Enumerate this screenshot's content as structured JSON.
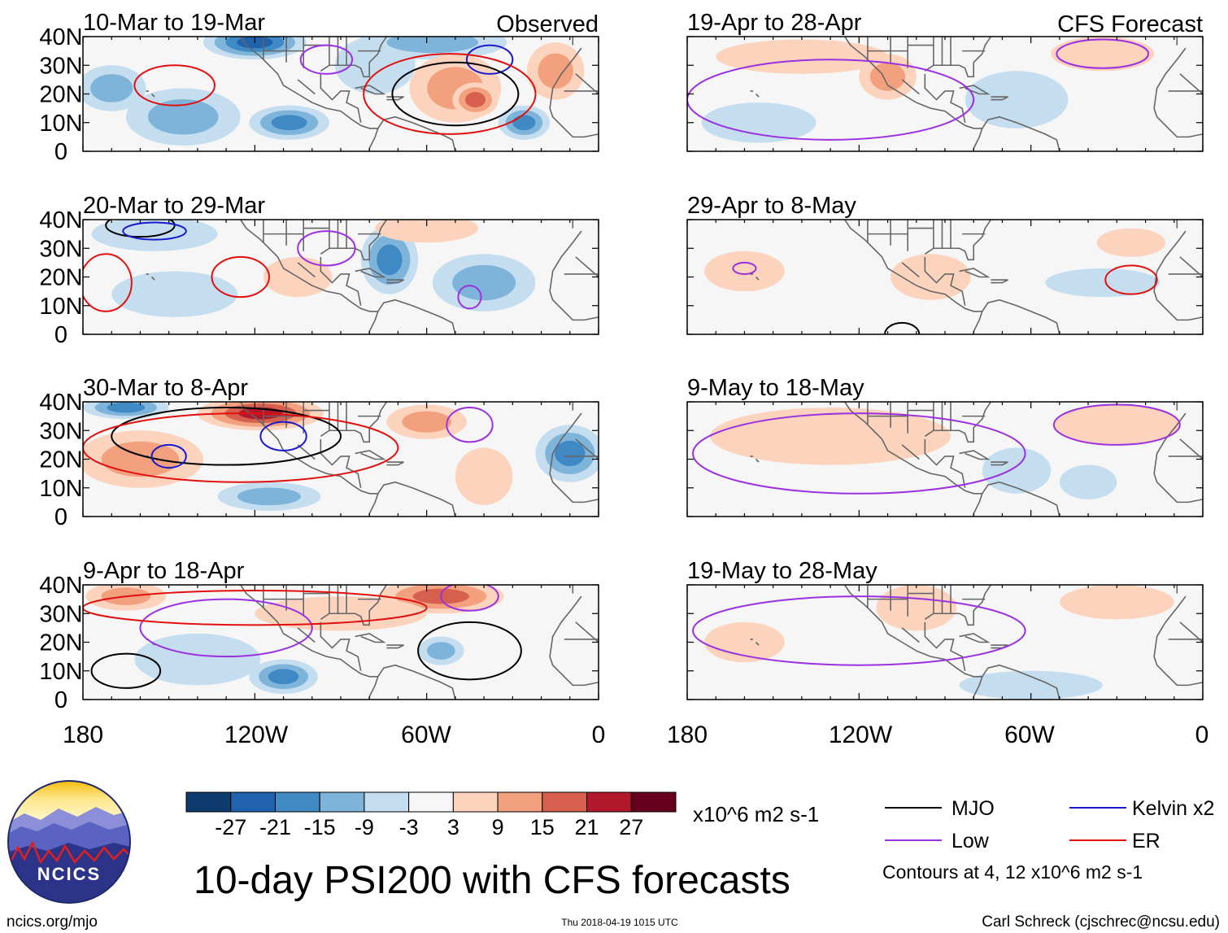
{
  "chart_data": {
    "type": "heatmap",
    "title": "10-day PSI200 with CFS forecasts",
    "variable": "PSI200",
    "units": "x10^6 m2 s-1",
    "x_range_deg": [
      -180,
      0
    ],
    "y_range_deg": [
      0,
      40
    ],
    "x_ticks": [
      "180",
      "120W",
      "60W",
      "0"
    ],
    "y_ticks": [
      "40N",
      "30N",
      "20N",
      "10N",
      "0"
    ],
    "colorbar": {
      "levels": [
        -27,
        -21,
        -15,
        -9,
        -3,
        3,
        9,
        15,
        21,
        27
      ],
      "tick_labels": [
        "-27",
        "-21",
        "-15",
        "-9",
        "-3",
        "3",
        "9",
        "15",
        "21",
        "27"
      ],
      "colors": [
        "#0d3b6e",
        "#1f63ad",
        "#3f89c4",
        "#7fb4da",
        "#c4def0",
        "#f6f6f6",
        "#fcd3bc",
        "#f2a07e",
        "#d6604d",
        "#b2182b",
        "#67001f"
      ]
    },
    "columns": [
      {
        "label": "Observed",
        "period": "observed"
      },
      {
        "label": "CFS Forecast",
        "period": "forecast"
      }
    ],
    "panels": [
      {
        "column": 0,
        "title": "10-Mar to 19-Mar",
        "corner_label": "Observed",
        "blobs": [
          {
            "lon": -170,
            "lat": 22,
            "rlon": 12,
            "rlat": 8,
            "value": -14
          },
          {
            "lon": -145,
            "lat": 12,
            "rlon": 20,
            "rlat": 10,
            "value": -9
          },
          {
            "lon": -120,
            "lat": 38,
            "rlon": 18,
            "rlat": 6,
            "value": -21
          },
          {
            "lon": -108,
            "lat": 10,
            "rlon": 14,
            "rlat": 6,
            "value": -19
          },
          {
            "lon": -78,
            "lat": 30,
            "rlon": 14,
            "rlat": 10,
            "value": -7
          },
          {
            "lon": -58,
            "lat": 38,
            "rlon": 26,
            "rlat": 6,
            "value": -14
          },
          {
            "lon": -50,
            "lat": 22,
            "rlon": 16,
            "rlat": 12,
            "value": 13
          },
          {
            "lon": -43,
            "lat": 18,
            "rlon": 8,
            "rlat": 6,
            "value": 20
          },
          {
            "lon": -26,
            "lat": 10,
            "rlon": 9,
            "rlat": 6,
            "value": -19
          },
          {
            "lon": -15,
            "lat": 28,
            "rlon": 10,
            "rlat": 10,
            "value": 9
          }
        ],
        "contours": [
          {
            "type": "ER",
            "lon": -148,
            "lat": 23,
            "rlon": 14,
            "rlat": 7
          },
          {
            "type": "Low",
            "lon": -95,
            "lat": 32,
            "rlon": 9,
            "rlat": 5
          },
          {
            "type": "Kelvin",
            "lon": -38,
            "lat": 32,
            "rlon": 8,
            "rlat": 5
          },
          {
            "type": "MJO",
            "lon": -50,
            "lat": 20,
            "rlon": 22,
            "rlat": 11
          },
          {
            "type": "ER",
            "lon": -52,
            "lat": 20,
            "rlon": 30,
            "rlat": 14
          }
        ]
      },
      {
        "column": 0,
        "title": "20-Mar to 29-Mar",
        "corner_label": "",
        "blobs": [
          {
            "lon": -155,
            "lat": 35,
            "rlon": 22,
            "rlat": 6,
            "value": -7
          },
          {
            "lon": -148,
            "lat": 14,
            "rlon": 22,
            "rlat": 8,
            "value": -7
          },
          {
            "lon": -73,
            "lat": 26,
            "rlon": 10,
            "rlat": 12,
            "value": -15
          },
          {
            "lon": -40,
            "lat": 18,
            "rlon": 18,
            "rlat": 10,
            "value": -11
          },
          {
            "lon": -60,
            "lat": 37,
            "rlon": 18,
            "rlat": 5,
            "value": 8
          },
          {
            "lon": -105,
            "lat": 20,
            "rlon": 12,
            "rlat": 7,
            "value": 6
          }
        ],
        "contours": [
          {
            "type": "ER",
            "lon": -125,
            "lat": 20,
            "rlon": 10,
            "rlat": 7
          },
          {
            "type": "ER",
            "lon": -172,
            "lat": 18,
            "rlon": 9,
            "rlat": 10
          },
          {
            "type": "Low",
            "lon": -95,
            "lat": 30,
            "rlon": 10,
            "rlat": 6
          },
          {
            "type": "Low",
            "lon": -45,
            "lat": 13,
            "rlon": 4,
            "rlat": 4
          },
          {
            "type": "MJO",
            "lon": -160,
            "lat": 38,
            "rlon": 12,
            "rlat": 4
          },
          {
            "type": "Kelvin",
            "lon": -155,
            "lat": 36,
            "rlon": 11,
            "rlat": 3
          }
        ]
      },
      {
        "column": 0,
        "title": "30-Mar to 8-Apr",
        "corner_label": "",
        "blobs": [
          {
            "lon": -165,
            "lat": 38,
            "rlon": 15,
            "rlat": 4,
            "value": -18
          },
          {
            "lon": -118,
            "lat": 36,
            "rlon": 22,
            "rlat": 6,
            "value": 21
          },
          {
            "lon": -160,
            "lat": 20,
            "rlon": 22,
            "rlat": 10,
            "value": 11
          },
          {
            "lon": -115,
            "lat": 7,
            "rlon": 18,
            "rlat": 5,
            "value": -14
          },
          {
            "lon": -10,
            "lat": 22,
            "rlon": 12,
            "rlat": 10,
            "value": -17
          },
          {
            "lon": -60,
            "lat": 33,
            "rlon": 14,
            "rlat": 6,
            "value": 9
          },
          {
            "lon": -40,
            "lat": 14,
            "rlon": 10,
            "rlat": 10,
            "value": 8
          }
        ],
        "contours": [
          {
            "type": "MJO",
            "lon": -130,
            "lat": 28,
            "rlon": 40,
            "rlat": 10
          },
          {
            "type": "Kelvin",
            "lon": -110,
            "lat": 28,
            "rlon": 8,
            "rlat": 5
          },
          {
            "type": "Kelvin",
            "lon": -150,
            "lat": 21,
            "rlon": 6,
            "rlat": 4
          },
          {
            "type": "Low",
            "lon": -45,
            "lat": 32,
            "rlon": 8,
            "rlat": 6
          },
          {
            "type": "ER",
            "lon": -125,
            "lat": 24,
            "rlon": 55,
            "rlat": 12
          }
        ]
      },
      {
        "column": 0,
        "title": "9-Apr to 18-Apr",
        "corner_label": "",
        "blobs": [
          {
            "lon": -165,
            "lat": 36,
            "rlon": 14,
            "rlat": 5,
            "value": 13
          },
          {
            "lon": -55,
            "lat": 36,
            "rlon": 22,
            "rlat": 6,
            "value": 17
          },
          {
            "lon": -110,
            "lat": 8,
            "rlon": 12,
            "rlat": 6,
            "value": -20
          },
          {
            "lon": -55,
            "lat": 17,
            "rlon": 8,
            "rlat": 5,
            "value": -14
          },
          {
            "lon": -140,
            "lat": 14,
            "rlon": 22,
            "rlat": 9,
            "value": -7
          },
          {
            "lon": -90,
            "lat": 30,
            "rlon": 30,
            "rlat": 6,
            "value": 7
          }
        ],
        "contours": [
          {
            "type": "MJO",
            "lon": -165,
            "lat": 10,
            "rlon": 12,
            "rlat": 6
          },
          {
            "type": "MJO",
            "lon": -45,
            "lat": 17,
            "rlon": 18,
            "rlat": 10
          },
          {
            "type": "Low",
            "lon": -130,
            "lat": 25,
            "rlon": 30,
            "rlat": 10
          },
          {
            "type": "Low",
            "lon": -45,
            "lat": 36,
            "rlon": 10,
            "rlat": 5
          },
          {
            "type": "ER",
            "lon": -120,
            "lat": 32,
            "rlon": 60,
            "rlat": 6
          }
        ]
      },
      {
        "column": 1,
        "title": "19-Apr to 28-Apr",
        "corner_label": "CFS Forecast",
        "blobs": [
          {
            "lon": -140,
            "lat": 33,
            "rlon": 30,
            "rlat": 6,
            "value": 6
          },
          {
            "lon": -110,
            "lat": 26,
            "rlon": 10,
            "rlat": 8,
            "value": 9
          },
          {
            "lon": -65,
            "lat": 18,
            "rlon": 18,
            "rlat": 10,
            "value": -7
          },
          {
            "lon": -155,
            "lat": 10,
            "rlon": 20,
            "rlat": 7,
            "value": -6
          },
          {
            "lon": -35,
            "lat": 34,
            "rlon": 18,
            "rlat": 6,
            "value": 6
          }
        ],
        "contours": [
          {
            "type": "Low",
            "lon": -35,
            "lat": 34,
            "rlon": 16,
            "rlat": 5
          },
          {
            "type": "Low",
            "lon": -130,
            "lat": 18,
            "rlon": 50,
            "rlat": 14
          }
        ]
      },
      {
        "column": 1,
        "title": "29-Apr to 8-May",
        "corner_label": "",
        "blobs": [
          {
            "lon": -160,
            "lat": 22,
            "rlon": 14,
            "rlat": 7,
            "value": 5
          },
          {
            "lon": -95,
            "lat": 20,
            "rlon": 14,
            "rlat": 8,
            "value": 6
          },
          {
            "lon": -25,
            "lat": 32,
            "rlon": 12,
            "rlat": 5,
            "value": 6
          },
          {
            "lon": -35,
            "lat": 18,
            "rlon": 20,
            "rlat": 5,
            "value": -5
          }
        ],
        "contours": [
          {
            "type": "ER",
            "lon": -25,
            "lat": 19,
            "rlon": 9,
            "rlat": 5
          },
          {
            "type": "Low",
            "lon": -160,
            "lat": 23,
            "rlon": 4,
            "rlat": 2
          },
          {
            "type": "MJO",
            "lon": -105,
            "lat": 0,
            "rlon": 6,
            "rlat": 4
          }
        ]
      },
      {
        "column": 1,
        "title": "9-May to 18-May",
        "corner_label": "",
        "blobs": [
          {
            "lon": -130,
            "lat": 28,
            "rlon": 42,
            "rlat": 10,
            "value": 5
          },
          {
            "lon": -30,
            "lat": 32,
            "rlon": 22,
            "rlat": 7,
            "value": 6
          },
          {
            "lon": -65,
            "lat": 16,
            "rlon": 12,
            "rlat": 8,
            "value": -5
          },
          {
            "lon": -40,
            "lat": 12,
            "rlon": 10,
            "rlat": 6,
            "value": -6
          }
        ],
        "contours": [
          {
            "type": "Low",
            "lon": -30,
            "lat": 32,
            "rlon": 22,
            "rlat": 7
          },
          {
            "type": "Low",
            "lon": -120,
            "lat": 22,
            "rlon": 58,
            "rlat": 14
          }
        ]
      },
      {
        "column": 1,
        "title": "19-May to 28-May",
        "corner_label": "",
        "blobs": [
          {
            "lon": -160,
            "lat": 20,
            "rlon": 14,
            "rlat": 7,
            "value": 5
          },
          {
            "lon": -100,
            "lat": 32,
            "rlon": 14,
            "rlat": 8,
            "value": 5
          },
          {
            "lon": -30,
            "lat": 34,
            "rlon": 20,
            "rlat": 6,
            "value": 6
          },
          {
            "lon": -60,
            "lat": 5,
            "rlon": 25,
            "rlat": 5,
            "value": -5
          }
        ],
        "contours": [
          {
            "type": "Low",
            "lon": -120,
            "lat": 24,
            "rlon": 58,
            "rlat": 12
          }
        ]
      }
    ],
    "legend": {
      "entries": [
        {
          "label": "MJO",
          "color": "#000000"
        },
        {
          "label": "Kelvin x2",
          "color": "#1a1acc"
        },
        {
          "label": "Low",
          "color": "#9b30e0"
        },
        {
          "label": "ER",
          "color": "#e01010"
        }
      ],
      "note": "Contours at 4, 12 x10^6 m2 s-1"
    }
  },
  "footer": {
    "logo_text": "NCICS",
    "url": "ncics.org/mjo",
    "timestamp": "Thu 2018-04-19 1015 UTC",
    "credit": "Carl Schreck (cjschrec@ncsu.edu)"
  },
  "colors": {
    "land": "#666666",
    "frame": "#000000"
  }
}
